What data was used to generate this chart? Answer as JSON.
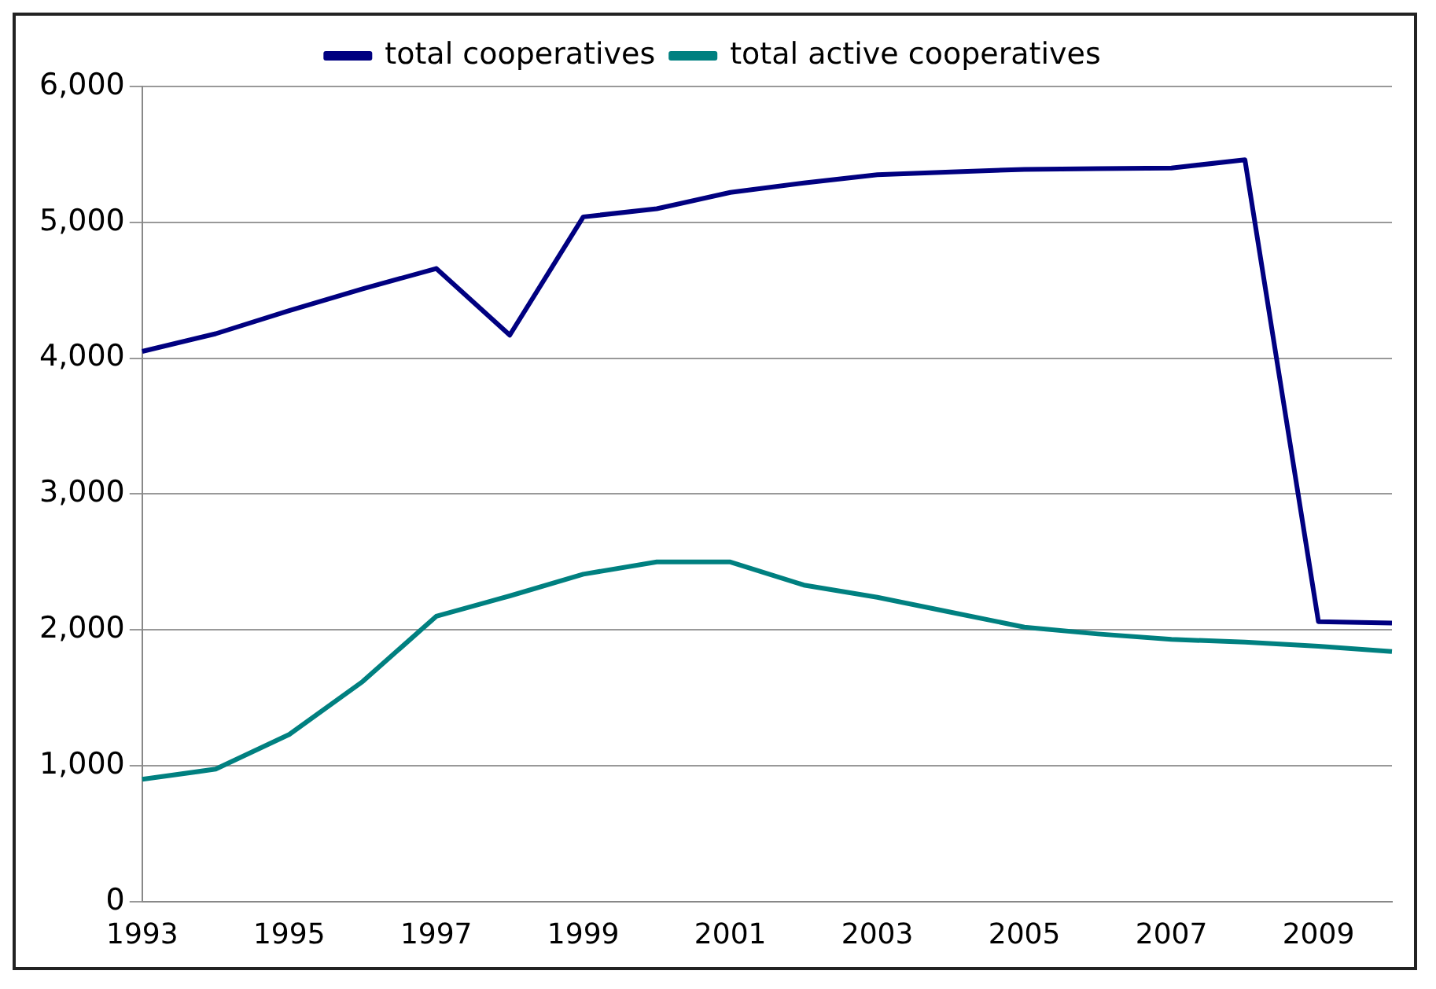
{
  "chart_data": {
    "type": "line",
    "categories": [
      "1993",
      null,
      "1995",
      null,
      "1997",
      null,
      "1999",
      null,
      "2001",
      null,
      "2003",
      null,
      "2005",
      null,
      "2007",
      null,
      "2009",
      null
    ],
    "series": [
      {
        "name": "total cooperatives",
        "color": "#000080",
        "values": [
          4050,
          4180,
          4350,
          4510,
          4660,
          4170,
          5040,
          5100,
          5220,
          5290,
          5350,
          5370,
          5390,
          5395,
          5400,
          5460,
          2060,
          2050
        ]
      },
      {
        "name": "total active cooperatives",
        "color": "#008080",
        "values": [
          900,
          975,
          1230,
          1620,
          2100,
          2250,
          2410,
          2500,
          2500,
          2330,
          2240,
          2130,
          2020,
          1970,
          1930,
          1910,
          1880,
          1840
        ]
      }
    ],
    "ylim": [
      0,
      6000
    ],
    "yticks": [
      {
        "value": 0,
        "label": "0"
      },
      {
        "value": 1000,
        "label": "1,000"
      },
      {
        "value": 2000,
        "label": "2,000"
      },
      {
        "value": 3000,
        "label": "3,000"
      },
      {
        "value": 4000,
        "label": "4,000"
      },
      {
        "value": 5000,
        "label": "5,000"
      },
      {
        "value": 6000,
        "label": "6,000"
      }
    ],
    "grid": "y",
    "legend": "top",
    "marker": "none",
    "line_style": "solid"
  }
}
